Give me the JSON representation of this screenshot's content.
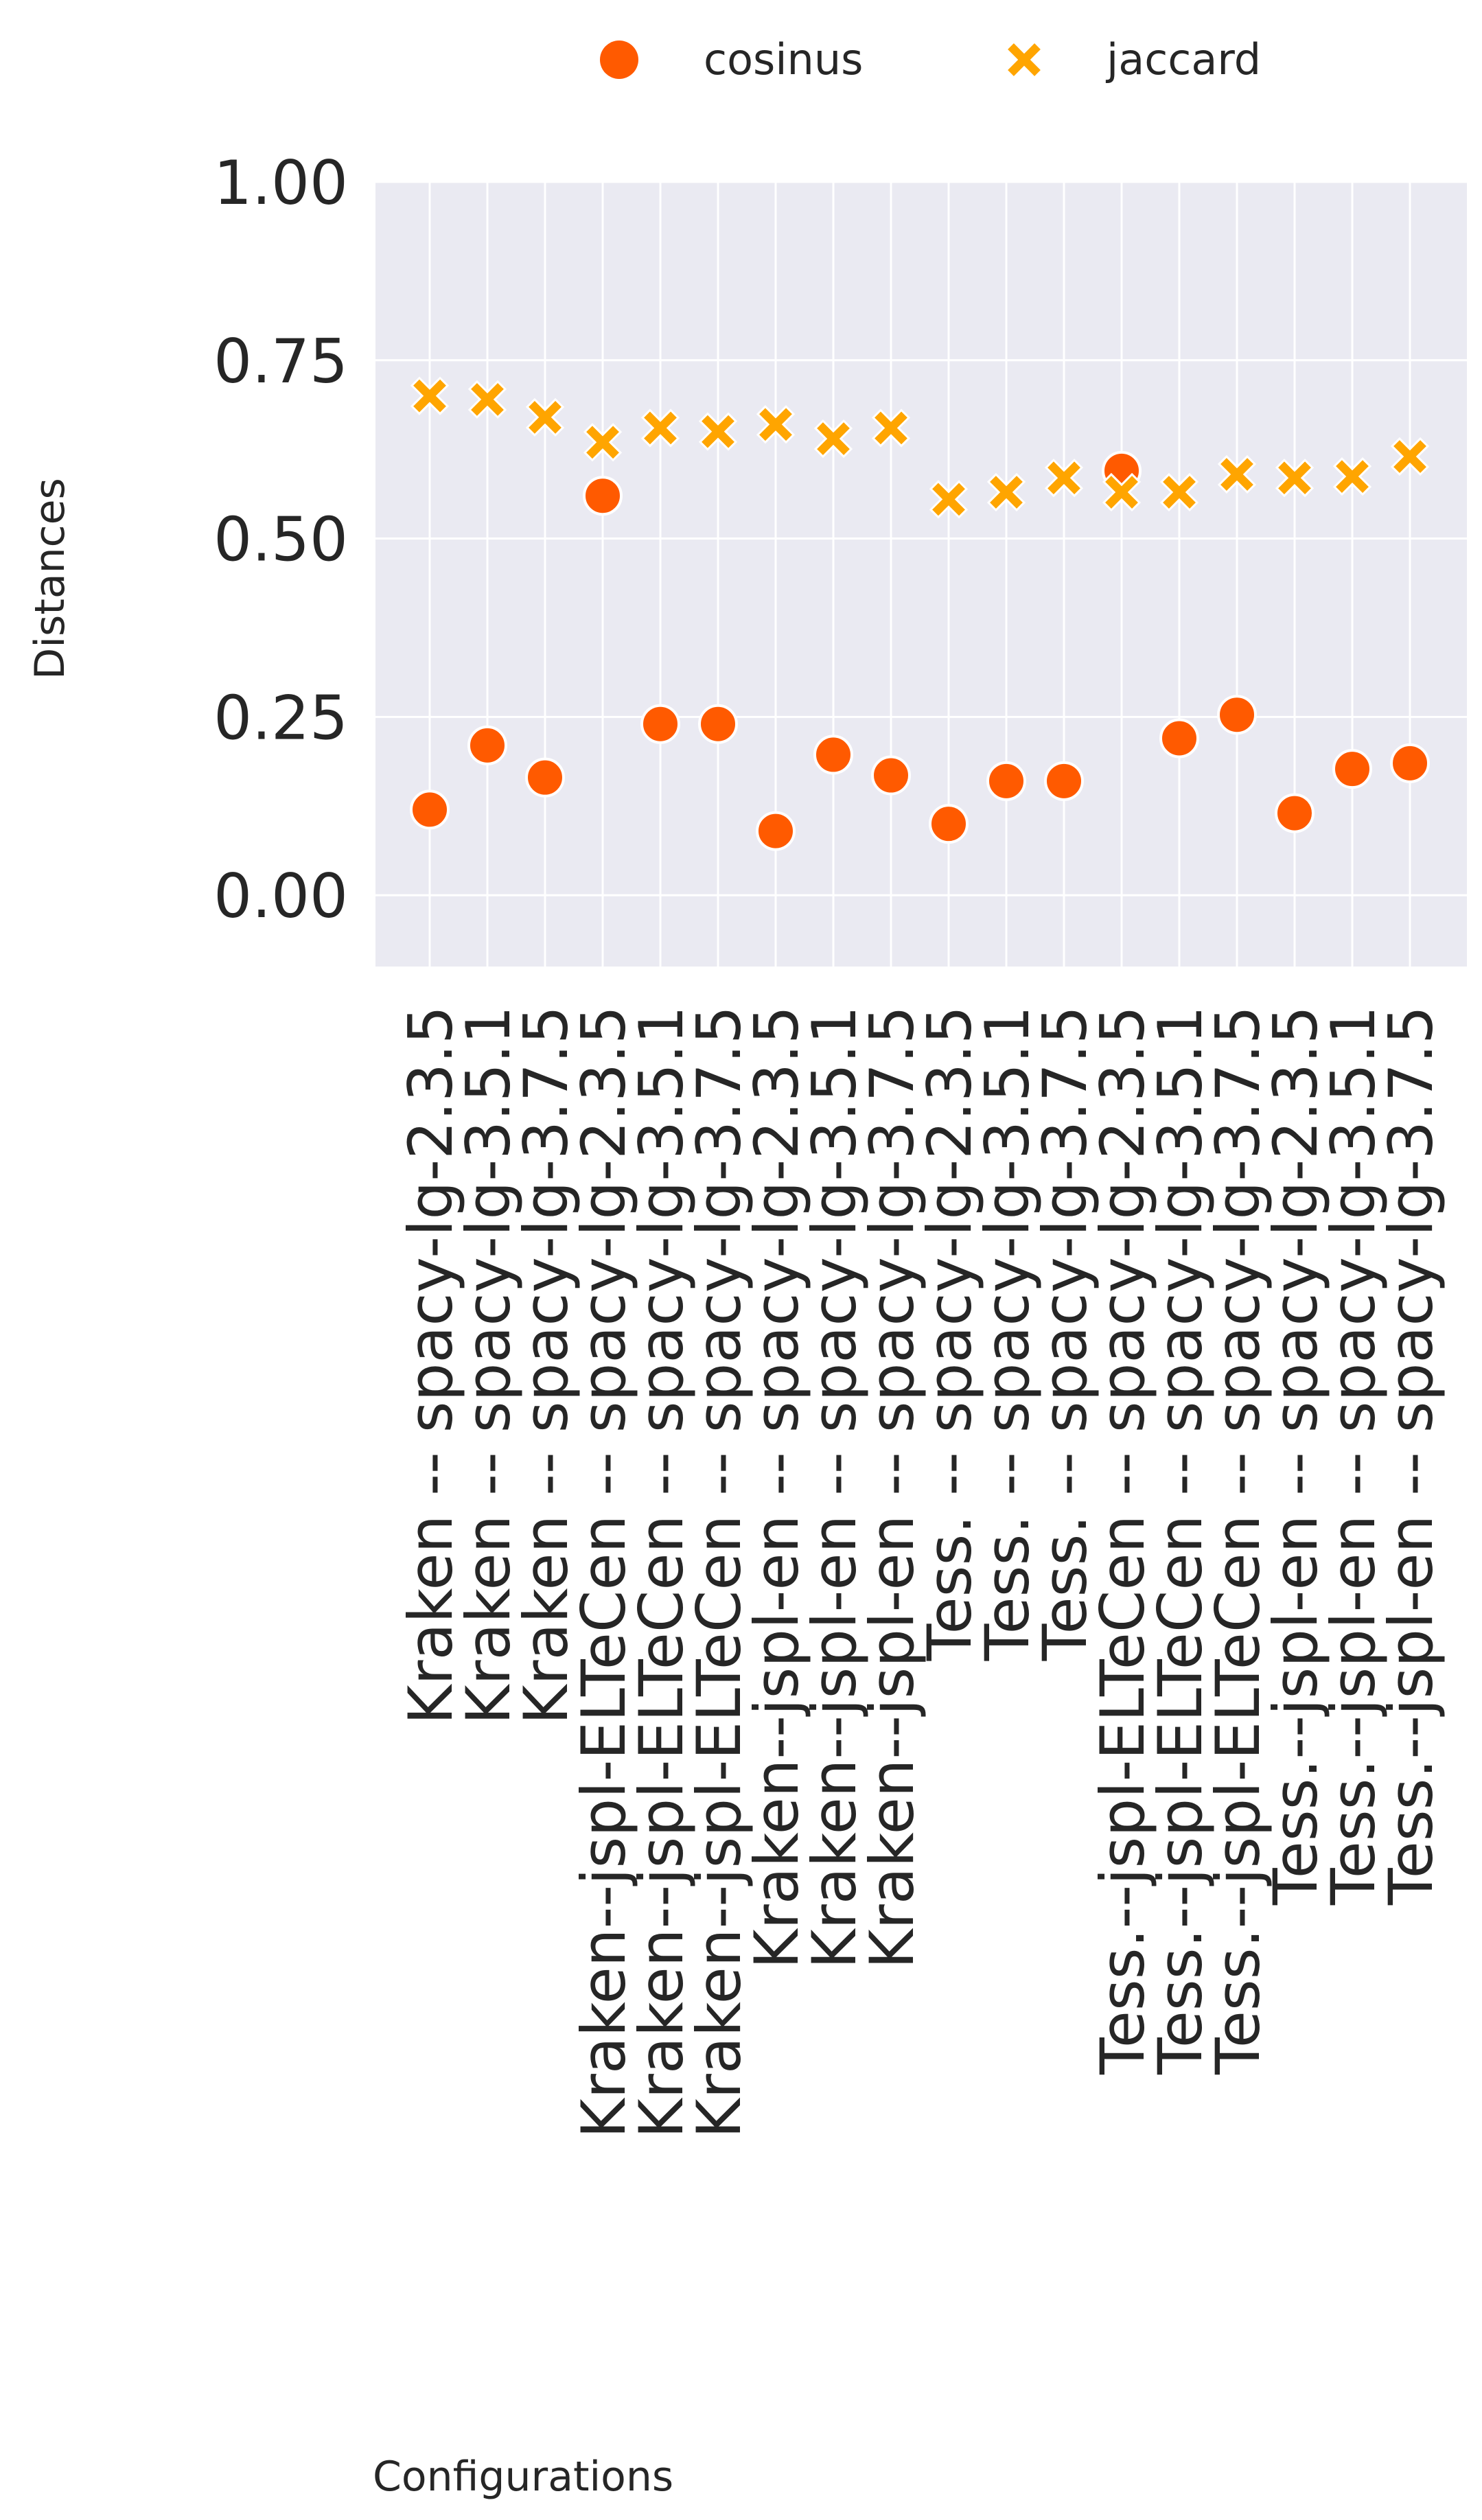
{
  "chart_data": {
    "type": "scatter",
    "xlabel": "Configurations",
    "ylabel": "Distances",
    "ylim": [
      -0.1,
      1.0
    ],
    "yticks": [
      "0.00",
      "0.25",
      "0.50",
      "0.75",
      "1.00"
    ],
    "grid": true,
    "legend_position": "top-center",
    "categories": [
      "Kraken -- spacy-lg-2.3.5",
      "Kraken -- spacy-lg-3.5.1",
      "Kraken -- spacy-lg-3.7.5",
      "Kraken--jspl-ELTeCen -- spacy-lg-2.3.5",
      "Kraken--jspl-ELTeCen -- spacy-lg-3.5.1",
      "Kraken--jspl-ELTeCen -- spacy-lg-3.7.5",
      "Kraken--jspl-en -- spacy-lg-2.3.5",
      "Kraken--jspl-en -- spacy-lg-3.5.1",
      "Kraken--jspl-en -- spacy-lg-3.7.5",
      "Tess. -- spacy-lg-2.3.5",
      "Tess. -- spacy-lg-3.5.1",
      "Tess. -- spacy-lg-3.7.5",
      "Tess.--jspl-ELTeCen -- spacy-lg-2.3.5",
      "Tess.--jspl-ELTeCen -- spacy-lg-3.5.1",
      "Tess.--jspl-ELTeCen -- spacy-lg-3.7.5",
      "Tess.--jspl-en -- spacy-lg-2.3.5",
      "Tess.--jspl-en -- spacy-lg-3.5.1",
      "Tess.--jspl-en -- spacy-lg-3.7.5"
    ],
    "series": [
      {
        "name": "cosinus",
        "marker": "circle",
        "color": "#ff5a00",
        "values": [
          0.12,
          0.21,
          0.165,
          0.56,
          0.24,
          0.24,
          0.09,
          0.197,
          0.168,
          0.1,
          0.16,
          0.16,
          0.595,
          0.22,
          0.253,
          0.115,
          0.177,
          0.185
        ]
      },
      {
        "name": "jaccard",
        "marker": "x",
        "color": "#ffa500",
        "values": [
          0.7,
          0.695,
          0.67,
          0.635,
          0.655,
          0.65,
          0.66,
          0.64,
          0.655,
          0.555,
          0.565,
          0.585,
          0.565,
          0.565,
          0.59,
          0.585,
          0.587,
          0.615
        ]
      }
    ]
  }
}
